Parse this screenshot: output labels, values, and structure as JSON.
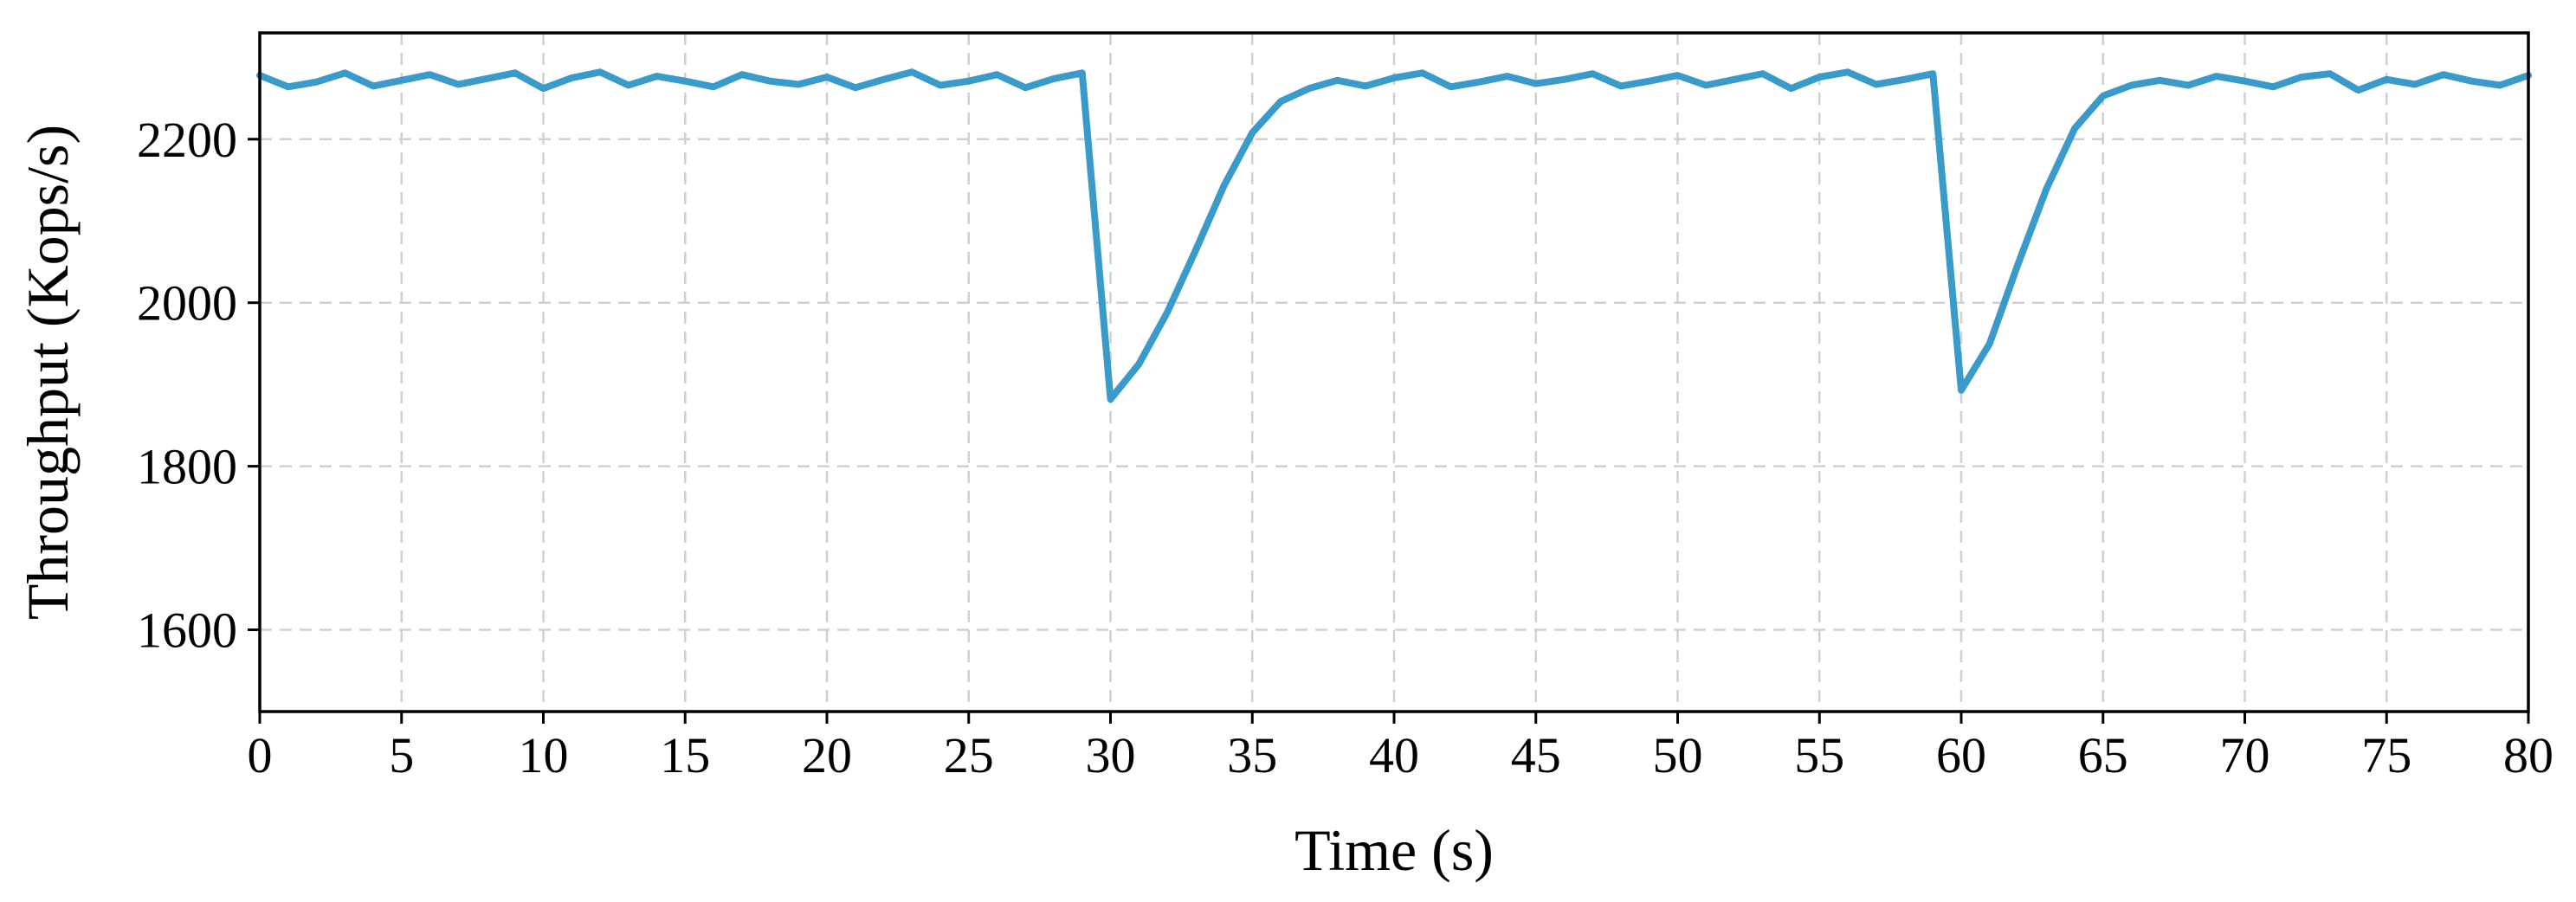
{
  "chart_data": {
    "type": "line",
    "title": "",
    "xlabel": "Time (s)",
    "ylabel": "Throughput (Kops/s)",
    "xlim": [
      0,
      80
    ],
    "ylim": [
      1500,
      2330
    ],
    "xticks": [
      0,
      5,
      10,
      15,
      20,
      25,
      30,
      35,
      40,
      45,
      50,
      55,
      60,
      65,
      70,
      75,
      80
    ],
    "yticks": [
      1600,
      1800,
      2000,
      2200
    ],
    "grid": true,
    "legend": "none",
    "series": [
      {
        "color": "#3a9bcb",
        "x": [
          0,
          1,
          2,
          3,
          4,
          5,
          6,
          7,
          8,
          9,
          10,
          11,
          12,
          13,
          14,
          15,
          16,
          17,
          18,
          19,
          20,
          21,
          22,
          23,
          24,
          25,
          26,
          27,
          28,
          29,
          30,
          31,
          32,
          33,
          34,
          35,
          36,
          37,
          38,
          39,
          40,
          41,
          42,
          43,
          44,
          45,
          46,
          47,
          48,
          49,
          50,
          51,
          52,
          53,
          54,
          55,
          56,
          57,
          58,
          59,
          60,
          61,
          62,
          63,
          64,
          65,
          66,
          67,
          68,
          69,
          70,
          71,
          72,
          73,
          74,
          75,
          76,
          77,
          78,
          79,
          80
        ],
        "y": [
          2278,
          2264,
          2270,
          2281,
          2265,
          2272,
          2279,
          2267,
          2274,
          2281,
          2262,
          2275,
          2282,
          2266,
          2277,
          2271,
          2264,
          2279,
          2271,
          2267,
          2276,
          2263,
          2273,
          2282,
          2266,
          2271,
          2279,
          2263,
          2274,
          2281,
          1882,
          1925,
          1988,
          2064,
          2143,
          2208,
          2246,
          2262,
          2272,
          2265,
          2275,
          2281,
          2264,
          2270,
          2277,
          2268,
          2273,
          2280,
          2265,
          2271,
          2278,
          2266,
          2273,
          2280,
          2262,
          2276,
          2282,
          2267,
          2273,
          2280,
          1893,
          1950,
          2047,
          2139,
          2213,
          2253,
          2266,
          2272,
          2266,
          2277,
          2271,
          2264,
          2276,
          2280,
          2260,
          2273,
          2267,
          2279,
          2271,
          2266,
          2278
        ]
      }
    ]
  }
}
